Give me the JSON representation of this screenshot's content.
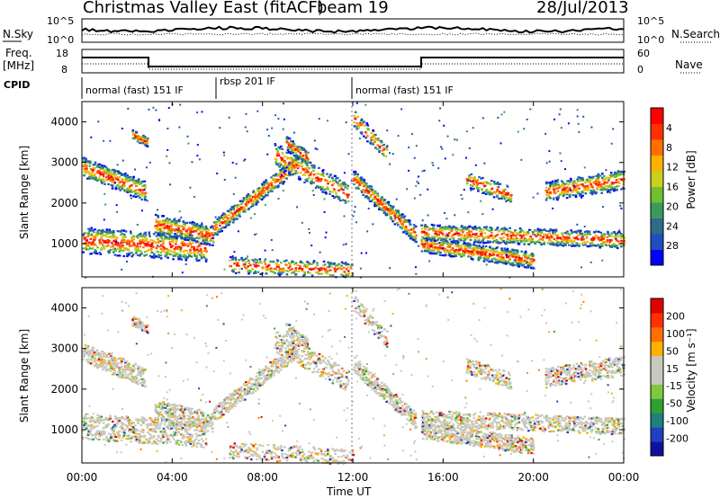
{
  "header": {
    "title": "Christmas Valley East (fitACF)",
    "beam": "beam 19",
    "date": "28/Jul/2013"
  },
  "panels": {
    "nsky_label": "N.Sky",
    "nsky_ticks": [
      "10^5",
      "10^0"
    ],
    "nsearch_label": "N.Search",
    "nsearch_ticks": [
      "10^5",
      "10^0"
    ],
    "freq_label_1": "Freq.",
    "freq_label_2": "[MHz]",
    "freq_ticks": [
      "18",
      "8"
    ],
    "nave_label": "Nave",
    "nave_ticks": [
      "60",
      "0"
    ],
    "cpid_label": "CPID",
    "cpid_segments": [
      {
        "label": "normal (fast) 151 IF",
        "start_h": 0,
        "end_h": 6
      },
      {
        "label": "rbsp 201 IF",
        "start_h": 6,
        "end_h": 12
      },
      {
        "label": "normal (fast) 151 IF",
        "start_h": 12,
        "end_h": 24
      }
    ]
  },
  "chart_data": [
    {
      "type": "heatmap",
      "name": "power",
      "ylabel": "Slant Range [km]",
      "yticks": [
        "1000",
        "2000",
        "3000",
        "4000"
      ],
      "xlabel": "Time UT",
      "xticks": [
        "00:00",
        "04:00",
        "08:00",
        "12:00",
        "16:00",
        "20:00",
        "00:00"
      ],
      "xlim_hours": [
        0,
        24
      ],
      "ylim_km": [
        180,
        4500
      ],
      "colorbar": {
        "label": "Power [dB]",
        "ticks": [
          "4",
          "8",
          "12",
          "16",
          "20",
          "24",
          "28"
        ],
        "colors": [
          "#0000ff",
          "#1f4fbf",
          "#2e6b8a",
          "#3a9a5a",
          "#6fbf30",
          "#c8d020",
          "#ffb000",
          "#ff7000",
          "#ff3000",
          "#ff0000"
        ]
      }
    },
    {
      "type": "heatmap",
      "name": "velocity",
      "ylabel": "Slant Range [km]",
      "yticks": [
        "1000",
        "2000",
        "3000",
        "4000"
      ],
      "xlabel": "Time UT",
      "xticks": [
        "00:00",
        "04:00",
        "08:00",
        "12:00",
        "16:00",
        "20:00",
        "00:00"
      ],
      "xlim_hours": [
        0,
        24
      ],
      "ylim_km": [
        180,
        4500
      ],
      "colorbar": {
        "label": "Velocity [m s⁻¹]",
        "ticks": [
          "200",
          "100",
          "50",
          "15",
          "-15",
          "-50",
          "-100",
          "-200"
        ],
        "colors": [
          "#1010a0",
          "#2040c0",
          "#208080",
          "#30a030",
          "#80c840",
          "#c8c8c0",
          "#c8c8c0",
          "#ffb000",
          "#ff7000",
          "#ff3000",
          "#e00000"
        ]
      }
    }
  ]
}
